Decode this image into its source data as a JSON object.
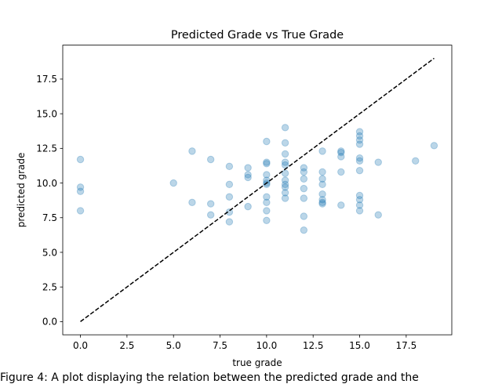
{
  "chart_data": {
    "type": "scatter",
    "title": "Predicted Grade vs True Grade",
    "xlabel": "true grade",
    "ylabel": "predicted grade",
    "xlim": [
      -0.95,
      19.95
    ],
    "ylim": [
      -0.95,
      19.95
    ],
    "xticks": [
      "0.0",
      "2.5",
      "5.0",
      "7.5",
      "10.0",
      "12.5",
      "15.0",
      "17.5"
    ],
    "yticks": [
      "0.0",
      "2.5",
      "5.0",
      "7.5",
      "10.0",
      "12.5",
      "15.0",
      "17.5"
    ],
    "xtick_values": [
      0,
      2.5,
      5,
      7.5,
      10,
      12.5,
      15,
      17.5
    ],
    "ytick_values": [
      0,
      2.5,
      5,
      7.5,
      10,
      12.5,
      15,
      17.5
    ],
    "grid": false,
    "point_color": "#1f77b4",
    "point_alpha": 0.3,
    "reference_line": {
      "style": "dashed",
      "color": "#000000",
      "from": [
        0,
        0
      ],
      "to": [
        19,
        19
      ]
    },
    "points": [
      {
        "x": 0,
        "y": 11.7
      },
      {
        "x": 0,
        "y": 9.7
      },
      {
        "x": 0,
        "y": 9.4
      },
      {
        "x": 0,
        "y": 8.0
      },
      {
        "x": 5,
        "y": 10.0
      },
      {
        "x": 6,
        "y": 12.3
      },
      {
        "x": 6,
        "y": 8.6
      },
      {
        "x": 7,
        "y": 11.7
      },
      {
        "x": 7,
        "y": 8.5
      },
      {
        "x": 7,
        "y": 7.7
      },
      {
        "x": 8,
        "y": 11.2
      },
      {
        "x": 8,
        "y": 9.9
      },
      {
        "x": 8,
        "y": 9.0
      },
      {
        "x": 8,
        "y": 7.9
      },
      {
        "x": 8,
        "y": 7.2
      },
      {
        "x": 9,
        "y": 11.1
      },
      {
        "x": 9,
        "y": 10.6
      },
      {
        "x": 9,
        "y": 10.4
      },
      {
        "x": 9,
        "y": 8.3
      },
      {
        "x": 10,
        "y": 13.0
      },
      {
        "x": 10,
        "y": 11.5
      },
      {
        "x": 10,
        "y": 11.4
      },
      {
        "x": 10,
        "y": 10.6
      },
      {
        "x": 10,
        "y": 10.2
      },
      {
        "x": 10,
        "y": 10.0
      },
      {
        "x": 10,
        "y": 9.9
      },
      {
        "x": 10,
        "y": 9.0
      },
      {
        "x": 10,
        "y": 8.6
      },
      {
        "x": 10,
        "y": 8.0
      },
      {
        "x": 10,
        "y": 7.3
      },
      {
        "x": 11,
        "y": 14.0
      },
      {
        "x": 11,
        "y": 12.9
      },
      {
        "x": 11,
        "y": 12.1
      },
      {
        "x": 11,
        "y": 11.5
      },
      {
        "x": 11,
        "y": 11.3
      },
      {
        "x": 11,
        "y": 10.7
      },
      {
        "x": 11,
        "y": 10.2
      },
      {
        "x": 11,
        "y": 9.9
      },
      {
        "x": 11,
        "y": 9.7
      },
      {
        "x": 11,
        "y": 9.3
      },
      {
        "x": 11,
        "y": 8.9
      },
      {
        "x": 12,
        "y": 11.1
      },
      {
        "x": 12,
        "y": 10.8
      },
      {
        "x": 12,
        "y": 10.3
      },
      {
        "x": 12,
        "y": 9.6
      },
      {
        "x": 12,
        "y": 8.9
      },
      {
        "x": 12,
        "y": 7.6
      },
      {
        "x": 12,
        "y": 6.6
      },
      {
        "x": 13,
        "y": 12.3
      },
      {
        "x": 13,
        "y": 10.8
      },
      {
        "x": 13,
        "y": 10.3
      },
      {
        "x": 13,
        "y": 9.9
      },
      {
        "x": 13,
        "y": 9.2
      },
      {
        "x": 13,
        "y": 8.8
      },
      {
        "x": 13,
        "y": 8.6
      },
      {
        "x": 13,
        "y": 8.5
      },
      {
        "x": 14,
        "y": 12.3
      },
      {
        "x": 14,
        "y": 12.2
      },
      {
        "x": 14,
        "y": 11.9
      },
      {
        "x": 14,
        "y": 10.8
      },
      {
        "x": 14,
        "y": 8.4
      },
      {
        "x": 15,
        "y": 13.7
      },
      {
        "x": 15,
        "y": 13.4
      },
      {
        "x": 15,
        "y": 13.1
      },
      {
        "x": 15,
        "y": 12.8
      },
      {
        "x": 15,
        "y": 11.8
      },
      {
        "x": 15,
        "y": 11.6
      },
      {
        "x": 15,
        "y": 10.9
      },
      {
        "x": 15,
        "y": 9.1
      },
      {
        "x": 15,
        "y": 8.8
      },
      {
        "x": 15,
        "y": 8.4
      },
      {
        "x": 15,
        "y": 8.0
      },
      {
        "x": 16,
        "y": 11.5
      },
      {
        "x": 16,
        "y": 7.7
      },
      {
        "x": 18,
        "y": 11.6
      },
      {
        "x": 19,
        "y": 12.7
      }
    ]
  },
  "caption": "Figure 4: A plot displaying the relation between the predicted grade and the"
}
